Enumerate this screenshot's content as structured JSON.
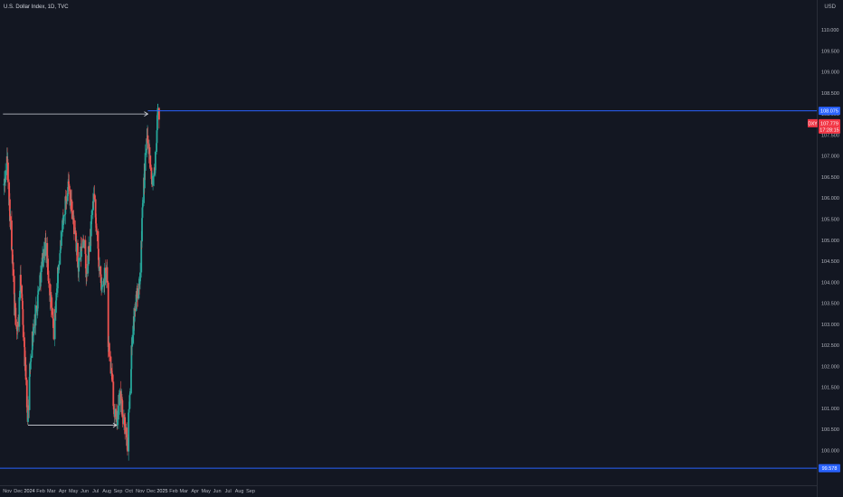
{
  "header": {
    "symbol_title": "U.S. Dollar Index, 1D, TVC",
    "currency": "USD"
  },
  "price_labels": {
    "symbol": "DXY",
    "last_price": "107.779",
    "countdown": "17:28:15",
    "upper_line_price": "108.075",
    "lower_line_price": "99.578"
  },
  "colors": {
    "background": "#131722",
    "up_candle": "#26a69a",
    "down_candle": "#ef5350",
    "horizontal_line": "#2962ff",
    "arrow": "#d1d4dc",
    "price_badge": "#f23645"
  },
  "chart_data": {
    "type": "candlestick",
    "title": "U.S. Dollar Index, 1D, TVC",
    "ylim": [
      99.45,
      110.4
    ],
    "y_ticks": [
      "110.000",
      "109.500",
      "109.000",
      "108.500",
      "108.000",
      "107.500",
      "107.000",
      "106.500",
      "106.000",
      "105.500",
      "105.000",
      "104.500",
      "104.000",
      "103.500",
      "103.000",
      "102.500",
      "102.000",
      "101.500",
      "101.000",
      "100.500",
      "100.000"
    ],
    "x_ticks": [
      "Nov",
      "Dec",
      "2024",
      "Feb",
      "Mar",
      "Apr",
      "May",
      "Jun",
      "Jul",
      "Aug",
      "Sep",
      "Oct",
      "Nov",
      "Dec",
      "2025",
      "Feb",
      "Mar",
      "Apr",
      "May",
      "Jun",
      "Jul",
      "Aug",
      "Sep"
    ],
    "trend_path": [
      [
        "2023-10-23",
        106.3
      ],
      [
        "2023-11-01",
        106.9
      ],
      [
        "2023-11-21",
        103.4
      ],
      [
        "2023-11-29",
        102.8
      ],
      [
        "2023-12-08",
        104.1
      ],
      [
        "2023-12-27",
        100.8
      ],
      [
        "2024-01-05",
        102.4
      ],
      [
        "2024-01-19",
        103.3
      ],
      [
        "2024-02-05",
        104.5
      ],
      [
        "2024-02-14",
        104.9
      ],
      [
        "2024-03-08",
        102.8
      ],
      [
        "2024-03-22",
        104.5
      ],
      [
        "2024-04-16",
        106.4
      ],
      [
        "2024-05-02",
        105.4
      ],
      [
        "2024-05-15",
        104.3
      ],
      [
        "2024-05-29",
        105.1
      ],
      [
        "2024-06-06",
        104.1
      ],
      [
        "2024-06-26",
        106.0
      ],
      [
        "2024-07-17",
        103.8
      ],
      [
        "2024-08-01",
        104.4
      ],
      [
        "2024-08-05",
        102.6
      ],
      [
        "2024-08-26",
        100.6
      ],
      [
        "2024-09-06",
        101.3
      ],
      [
        "2024-09-27",
        100.2
      ],
      [
        "2024-10-11",
        102.9
      ],
      [
        "2024-11-01",
        104.3
      ],
      [
        "2024-11-06",
        105.4
      ],
      [
        "2024-11-14",
        106.8
      ],
      [
        "2024-11-22",
        107.5
      ],
      [
        "2024-12-04",
        106.4
      ],
      [
        "2024-12-13",
        106.9
      ],
      [
        "2024-12-20",
        108.3
      ],
      [
        "2024-12-23",
        107.8
      ]
    ],
    "annotations": {
      "upper_arrow": {
        "from": [
          "2023-10-20",
          108.0
        ],
        "to": [
          "2024-11-22",
          108.0
        ]
      },
      "lower_arrow": {
        "from": [
          "2023-12-28",
          100.6
        ],
        "to": [
          "2024-08-28",
          100.6
        ]
      },
      "upper_horizontal_line": 108.075,
      "lower_horizontal_line": 99.578
    }
  }
}
